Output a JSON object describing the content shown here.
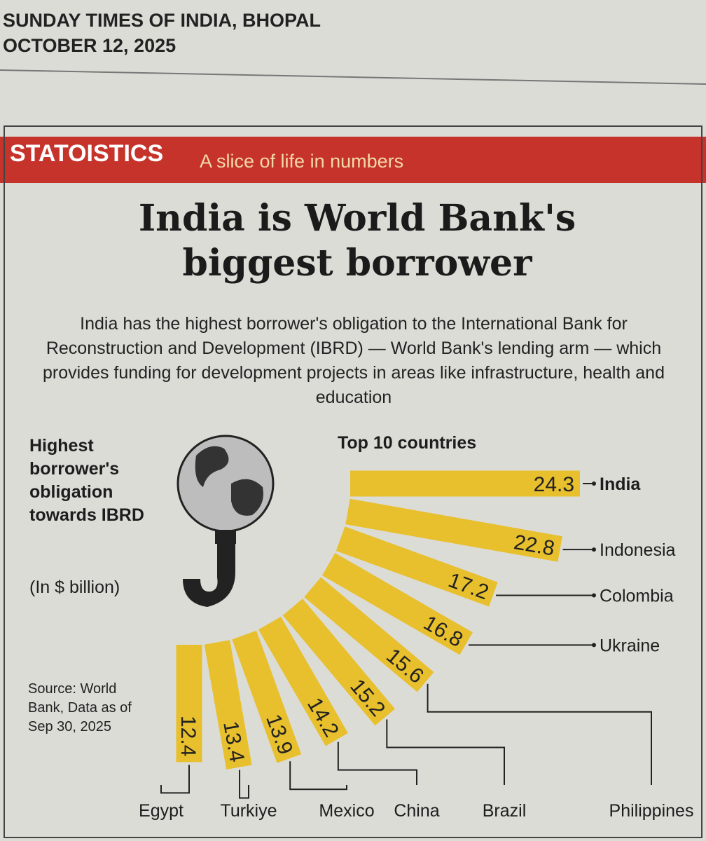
{
  "header": {
    "newspaper": "SUNDAY TIMES OF INDIA, BHOPAL",
    "date": "OCTOBER 12, 2025"
  },
  "banner": {
    "brand": "STATOISTICS",
    "tagline": "A slice of life in numbers"
  },
  "chart_data": {
    "type": "radial-bar",
    "title": "India is World Bank's biggest borrower",
    "subtitle": "India has the highest borrower's obligation to the International Bank for Reconstruction and Development (IBRD) — World Bank's lending arm — which provides funding for development projects in areas like infrastructure, health and education",
    "y_label": "Highest borrower's obligation towards IBRD",
    "unit": "(In $ billion)",
    "heading": "Top 10 countries",
    "source": "Source: World Bank, Data as of Sep 30, 2025",
    "categories": [
      "India",
      "Indonesia",
      "Colombia",
      "Ukraine",
      "Philippines",
      "Brazil",
      "China",
      "Mexico",
      "Turkiye",
      "Egypt"
    ],
    "values": [
      24.3,
      22.8,
      17.2,
      16.8,
      15.6,
      15.2,
      14.2,
      13.9,
      13.4,
      12.4
    ],
    "color": "#e8bf2c"
  }
}
